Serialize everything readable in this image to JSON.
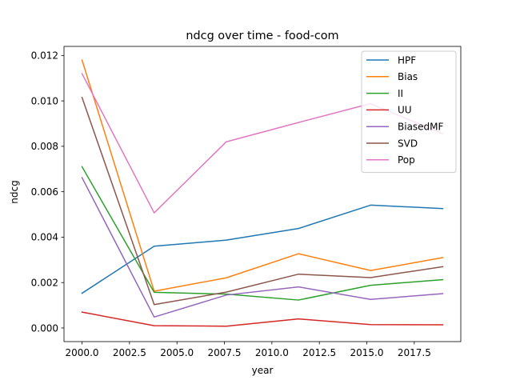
{
  "chart_data": {
    "type": "line",
    "title": "ndcg over time - food-com",
    "xlabel": "year",
    "ylabel": "ndcg",
    "xlim": [
      1999.05,
      2019.95
    ],
    "ylim": [
      -0.0006,
      0.0124
    ],
    "x_ticks": [
      2000.0,
      2002.5,
      2005.0,
      2007.5,
      2010.0,
      2012.5,
      2015.0,
      2017.5
    ],
    "x_tick_labels": [
      "2000.0",
      "2002.5",
      "2005.0",
      "2007.5",
      "2010.0",
      "2012.5",
      "2015.0",
      "2017.5"
    ],
    "y_ticks": [
      0.0,
      0.002,
      0.004,
      0.006,
      0.008,
      0.01,
      0.012
    ],
    "y_tick_labels": [
      "0.000",
      "0.002",
      "0.004",
      "0.006",
      "0.008",
      "0.010",
      "0.012"
    ],
    "grid": false,
    "legend_position": "top-right",
    "x": [
      2000.0,
      2003.8,
      2007.6,
      2011.4,
      2015.2,
      2019.0
    ],
    "series": [
      {
        "name": "HPF",
        "color": "#1f77b4",
        "values": [
          0.00153,
          0.0036,
          0.00387,
          0.00438,
          0.00541,
          0.00526
        ]
      },
      {
        "name": "Bias",
        "color": "#ff7f0e",
        "values": [
          0.0118,
          0.00162,
          0.00221,
          0.00327,
          0.00253,
          0.0031
        ]
      },
      {
        "name": "II",
        "color": "#2ca02c",
        "values": [
          0.0071,
          0.00157,
          0.00149,
          0.00123,
          0.00188,
          0.00213
        ]
      },
      {
        "name": "UU",
        "color": "#d62728",
        "values": [
          0.0007,
          0.0001,
          8e-05,
          0.0004,
          0.00015,
          0.00014
        ]
      },
      {
        "name": "BiasedMF",
        "color": "#9467bd",
        "values": [
          0.00662,
          0.00048,
          0.00145,
          0.00181,
          0.00126,
          0.00151
        ]
      },
      {
        "name": "SVD",
        "color": "#8c564b",
        "values": [
          0.01015,
          0.00103,
          0.00158,
          0.00237,
          0.00222,
          0.0027
        ]
      },
      {
        "name": "Pop",
        "color": "#e377c2",
        "values": [
          0.0112,
          0.00507,
          0.0082,
          0.00905,
          0.00988,
          0.00855
        ]
      }
    ]
  }
}
